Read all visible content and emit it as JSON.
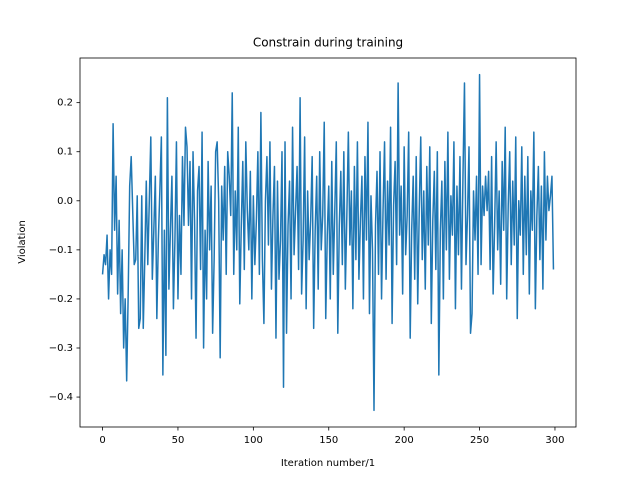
{
  "chart_data": {
    "type": "line",
    "title": "Constrain during training",
    "x_label": "Iteration number/1",
    "y_label": "Violation",
    "color": "#1f77b4",
    "xlim": [
      -14.95,
      313.95
    ],
    "ylim": [
      -0.461,
      0.291
    ],
    "xticks": [
      0,
      50,
      100,
      150,
      200,
      250,
      300
    ],
    "yticks": [
      {
        "value": -0.4,
        "label": "−0.4"
      },
      {
        "value": -0.3,
        "label": "−0.3"
      },
      {
        "value": -0.2,
        "label": "−0.2"
      },
      {
        "value": -0.1,
        "label": "−0.1"
      },
      {
        "value": 0,
        "label": "0.0"
      },
      0.1,
      0.2
    ],
    "x": [
      0,
      1,
      2,
      3,
      4,
      5,
      6,
      7,
      8,
      9,
      10,
      11,
      12,
      13,
      14,
      15,
      16,
      17,
      18,
      19,
      20,
      21,
      22,
      23,
      24,
      25,
      26,
      27,
      28,
      29,
      30,
      31,
      32,
      33,
      34,
      35,
      36,
      37,
      38,
      39,
      40,
      41,
      42,
      43,
      44,
      45,
      46,
      47,
      48,
      49,
      50,
      51,
      52,
      53,
      54,
      55,
      56,
      57,
      58,
      59,
      60,
      61,
      62,
      63,
      64,
      65,
      66,
      67,
      68,
      69,
      70,
      71,
      72,
      73,
      74,
      75,
      76,
      77,
      78,
      79,
      80,
      81,
      82,
      83,
      84,
      85,
      86,
      87,
      88,
      89,
      90,
      91,
      92,
      93,
      94,
      95,
      96,
      97,
      98,
      99,
      100,
      101,
      102,
      103,
      104,
      105,
      106,
      107,
      108,
      109,
      110,
      111,
      112,
      113,
      114,
      115,
      116,
      117,
      118,
      119,
      120,
      121,
      122,
      123,
      124,
      125,
      126,
      127,
      128,
      129,
      130,
      131,
      132,
      133,
      134,
      135,
      136,
      137,
      138,
      139,
      140,
      141,
      142,
      143,
      144,
      145,
      146,
      147,
      148,
      149,
      150,
      151,
      152,
      153,
      154,
      155,
      156,
      157,
      158,
      159,
      160,
      161,
      162,
      163,
      164,
      165,
      166,
      167,
      168,
      169,
      170,
      171,
      172,
      173,
      174,
      175,
      176,
      177,
      178,
      179,
      180,
      181,
      182,
      183,
      184,
      185,
      186,
      187,
      188,
      189,
      190,
      191,
      192,
      193,
      194,
      195,
      196,
      197,
      198,
      199,
      200,
      201,
      202,
      203,
      204,
      205,
      206,
      207,
      208,
      209,
      210,
      211,
      212,
      213,
      214,
      215,
      216,
      217,
      218,
      219,
      220,
      221,
      222,
      223,
      224,
      225,
      226,
      227,
      228,
      229,
      230,
      231,
      232,
      233,
      234,
      235,
      236,
      237,
      238,
      239,
      240,
      241,
      242,
      243,
      244,
      245,
      246,
      247,
      248,
      249,
      250,
      251,
      252,
      253,
      254,
      255,
      256,
      257,
      258,
      259,
      260,
      261,
      262,
      263,
      264,
      265,
      266,
      267,
      268,
      269,
      270,
      271,
      272,
      273,
      274,
      275,
      276,
      277,
      278,
      279,
      280,
      281,
      282,
      283,
      284,
      285,
      286,
      287,
      288,
      289,
      290,
      291,
      292,
      293,
      294,
      295,
      296,
      297,
      298,
      299
    ],
    "values": [
      -0.15,
      -0.11,
      -0.13,
      -0.07,
      -0.2,
      -0.1,
      -0.15,
      0.157,
      -0.06,
      0.05,
      -0.19,
      -0.04,
      -0.23,
      -0.1,
      -0.3,
      -0.2,
      -0.367,
      -0.19,
      0.03,
      0.09,
      -0.02,
      -0.13,
      -0.12,
      0.01,
      -0.26,
      -0.24,
      0.01,
      -0.26,
      -0.12,
      0.04,
      -0.13,
      0.0,
      0.13,
      -0.16,
      -0.06,
      0.05,
      -0.24,
      -0.08,
      0.02,
      0.13,
      -0.355,
      -0.06,
      -0.315,
      0.21,
      -0.18,
      -0.06,
      0.05,
      -0.22,
      -0.08,
      0.12,
      -0.2,
      -0.03,
      -0.15,
      0.09,
      -0.05,
      0.15,
      0.11,
      -0.05,
      0.08,
      -0.2,
      0.1,
      -0.04,
      -0.28,
      0.02,
      0.07,
      -0.14,
      0.14,
      -0.3,
      -0.06,
      -0.2,
      0.08,
      -0.1,
      0.03,
      -0.27,
      -0.12,
      0.1,
      0.12,
      0.0,
      -0.32,
      0.03,
      -0.08,
      0.07,
      -0.15,
      0.1,
      0.05,
      -0.03,
      0.22,
      -0.15,
      0.02,
      -0.1,
      0.15,
      -0.21,
      -0.05,
      0.08,
      -0.14,
      0.12,
      -0.02,
      -0.1,
      0.06,
      -0.2,
      0.01,
      -0.13,
      -0.04,
      0.1,
      -0.15,
      0.18,
      -0.12,
      -0.25,
      0.0,
      0.09,
      -0.09,
      0.12,
      -0.18,
      -0.03,
      0.07,
      -0.28,
      0.04,
      -0.16,
      -0.08,
      0.1,
      -0.38,
      0.12,
      -0.27,
      -0.05,
      0.04,
      -0.2,
      0.15,
      -0.11,
      -0.02,
      0.07,
      -0.14,
      0.21,
      -0.19,
      -0.08,
      0.13,
      -0.22,
      0.02,
      -0.12,
      -0.04,
      0.09,
      -0.26,
      -0.06,
      0.05,
      -0.18,
      0.1,
      -0.1,
      -0.03,
      0.16,
      -0.24,
      -0.07,
      0.03,
      -0.2,
      0.08,
      -0.15,
      -0.02,
      0.12,
      -0.27,
      -0.05,
      0.06,
      -0.13,
      0.1,
      -0.18,
      -0.03,
      0.14,
      -0.09,
      0.02,
      -0.22,
      0.07,
      -0.12,
      0.12,
      -0.16,
      -0.04,
      0.05,
      -0.2,
      0.09,
      -0.08,
      0.16,
      -0.23,
      0.01,
      -0.1,
      -0.427,
      -0.05,
      0.06,
      -0.15,
      0.1,
      -0.2,
      -0.02,
      0.12,
      -0.16,
      0.04,
      -0.09,
      0.15,
      -0.25,
      -0.01,
      0.08,
      -0.13,
      0.24,
      -0.07,
      0.03,
      -0.19,
      0.11,
      -0.11,
      -0.03,
      0.14,
      -0.28,
      -0.06,
      0.05,
      -0.16,
      0.09,
      -0.21,
      -0.02,
      0.13,
      -0.12,
      0.02,
      -0.18,
      0.07,
      -0.09,
      0.11,
      -0.25,
      -0.04,
      0.06,
      -0.14,
      0.1,
      -0.355,
      -0.06,
      0.04,
      -0.2,
      0.08,
      -0.1,
      0.14,
      -0.16,
      0.01,
      -0.07,
      0.12,
      -0.22,
      0.03,
      -0.11,
      0.09,
      -0.18,
      0.05,
      0.24,
      -0.13,
      -0.03,
      0.11,
      -0.27,
      -0.23,
      0.02,
      -0.08,
      0.05,
      -0.15,
      0.257,
      -0.13,
      0.03,
      -0.03,
      0.05,
      -0.02,
      0.06,
      -0.14,
      0.09,
      -0.19,
      -0.05,
      0.12,
      -0.1,
      0.02,
      -0.17,
      0.08,
      -0.06,
      0.15,
      -0.2,
      -0.01,
      0.1,
      -0.13,
      0.04,
      -0.09,
      0.13,
      -0.24,
      0.0,
      -0.07,
      0.11,
      -0.15,
      0.05,
      -0.11,
      0.09,
      -0.19,
      0.02,
      -0.06,
      0.14,
      -0.22,
      -0.03,
      0.07,
      -0.12,
      0.03,
      -0.18,
      0.1,
      -0.08,
      0.05,
      -0.02,
      0.01,
      0.05,
      -0.14
    ]
  }
}
